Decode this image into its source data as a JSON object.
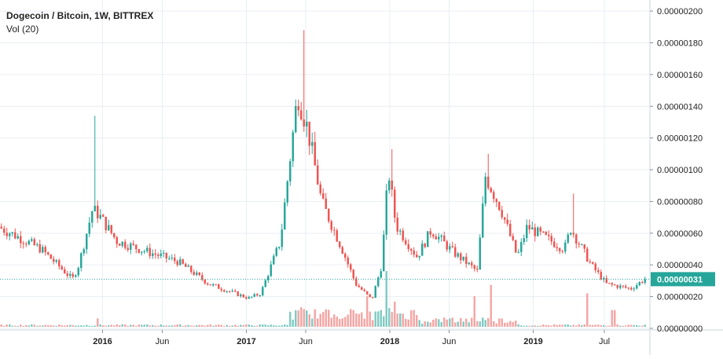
{
  "chart_data": {
    "type": "candlestick",
    "title": "Dogecoin / Bitcoin, 1W, BITTREX",
    "indicator": "Vol (20)",
    "y_unit": "BTC",
    "ylim": [
      -1e-08,
      2.05e-06
    ],
    "xlim": [
      "2015-04-15",
      "2019-10-25"
    ],
    "grid": true,
    "y_ticks": [
      {
        "value": 2e-06,
        "label": "0.00000200"
      },
      {
        "value": 1.8e-06,
        "label": "0.00000180"
      },
      {
        "value": 1.6e-06,
        "label": "0.00000160"
      },
      {
        "value": 1.4e-06,
        "label": "0.00000140"
      },
      {
        "value": 1.2e-06,
        "label": "0.00000120"
      },
      {
        "value": 1e-06,
        "label": "0.00000100"
      },
      {
        "value": 8e-07,
        "label": "0.00000080"
      },
      {
        "value": 6e-07,
        "label": "0.00000060"
      },
      {
        "value": 4e-07,
        "label": "0.00000040"
      },
      {
        "value": 2e-07,
        "label": "0.00000020"
      },
      {
        "value": 0.0,
        "label": "0.00000000"
      }
    ],
    "x_ticks": [
      {
        "date": "2016-01-01",
        "label": "2016",
        "bold": true
      },
      {
        "date": "2016-06-01",
        "label": "Jun",
        "bold": false
      },
      {
        "date": "2017-01-01",
        "label": "2017",
        "bold": true
      },
      {
        "date": "2017-06-01",
        "label": "Jun",
        "bold": false
      },
      {
        "date": "2018-01-01",
        "label": "2018",
        "bold": true
      },
      {
        "date": "2018-06-01",
        "label": "Jun",
        "bold": false
      },
      {
        "date": "2019-01-01",
        "label": "2019",
        "bold": true
      },
      {
        "date": "2019-07-01",
        "label": "Jul",
        "bold": false
      }
    ],
    "last_price": {
      "value": 3.1e-07,
      "label": "0.00000031"
    },
    "colors": {
      "up": "#26a69a",
      "down": "#ef5350",
      "volume_up": "#80cbc4",
      "volume_down": "#f4a6a4",
      "grid": "#e9eef2",
      "axis_text": "#222222",
      "price_line": "#26a69a"
    },
    "series": [
      {
        "name": "Price",
        "shape": "candles",
        "bars_per_week": 1,
        "start": "2015-04-15",
        "end": "2019-10-15",
        "key_points": [
          {
            "date": "2015-04-15",
            "value": 6.4e-07
          },
          {
            "date": "2015-08-01",
            "value": 5e-07
          },
          {
            "date": "2015-10-20",
            "value": 3.1e-07
          },
          {
            "date": "2015-11-05",
            "value": 4e-07
          },
          {
            "date": "2015-12-10",
            "value": 7.5e-07
          },
          {
            "date": "2015-12-25",
            "value": 7.2e-07
          },
          {
            "date": "2016-02-10",
            "value": 5.5e-07
          },
          {
            "date": "2016-05-01",
            "value": 4.8e-07
          },
          {
            "date": "2016-07-15",
            "value": 4.2e-07
          },
          {
            "date": "2016-10-01",
            "value": 2.8e-07
          },
          {
            "date": "2017-01-10",
            "value": 1.9e-07
          },
          {
            "date": "2017-02-10",
            "value": 2.2e-07
          },
          {
            "date": "2017-04-01",
            "value": 5.5e-07
          },
          {
            "date": "2017-05-15",
            "value": 1.48e-06
          },
          {
            "date": "2017-06-10",
            "value": 1.25e-06
          },
          {
            "date": "2017-07-15",
            "value": 8e-07
          },
          {
            "date": "2017-09-05",
            "value": 5e-07
          },
          {
            "date": "2017-10-10",
            "value": 2.8e-07
          },
          {
            "date": "2017-11-20",
            "value": 1.8e-07
          },
          {
            "date": "2017-12-15",
            "value": 4e-07
          },
          {
            "date": "2018-01-01",
            "value": 1e-06
          },
          {
            "date": "2018-01-20",
            "value": 6.5e-07
          },
          {
            "date": "2018-03-15",
            "value": 4.5e-07
          },
          {
            "date": "2018-04-20",
            "value": 6.2e-07
          },
          {
            "date": "2018-06-15",
            "value": 4.8e-07
          },
          {
            "date": "2018-08-15",
            "value": 3.6e-07
          },
          {
            "date": "2018-09-05",
            "value": 9.6e-07
          },
          {
            "date": "2018-10-15",
            "value": 7.5e-07
          },
          {
            "date": "2018-11-25",
            "value": 4.5e-07
          },
          {
            "date": "2018-12-20",
            "value": 6.4e-07
          },
          {
            "date": "2019-03-25",
            "value": 5e-07
          },
          {
            "date": "2019-04-10",
            "value": 6.3e-07
          },
          {
            "date": "2019-06-01",
            "value": 4e-07
          },
          {
            "date": "2019-07-10",
            "value": 2.8e-07
          },
          {
            "date": "2019-09-10",
            "value": 2.5e-07
          },
          {
            "date": "2019-10-15",
            "value": 3.1e-07
          }
        ]
      },
      {
        "name": "Volume",
        "shape": "bars",
        "bars_per_week": 1,
        "spikes": [
          {
            "date": "2015-12-15",
            "value": 0.15
          },
          {
            "date": "2017-05-15",
            "value": 0.35
          },
          {
            "date": "2017-11-01",
            "value": 0.55
          },
          {
            "date": "2017-12-20",
            "value": 1.0
          },
          {
            "date": "2018-01-10",
            "value": 0.45
          },
          {
            "date": "2018-08-01",
            "value": 0.55
          },
          {
            "date": "2018-09-10",
            "value": 0.75
          },
          {
            "date": "2019-05-15",
            "value": 0.6
          },
          {
            "date": "2019-07-20",
            "value": 0.3
          }
        ]
      }
    ]
  }
}
